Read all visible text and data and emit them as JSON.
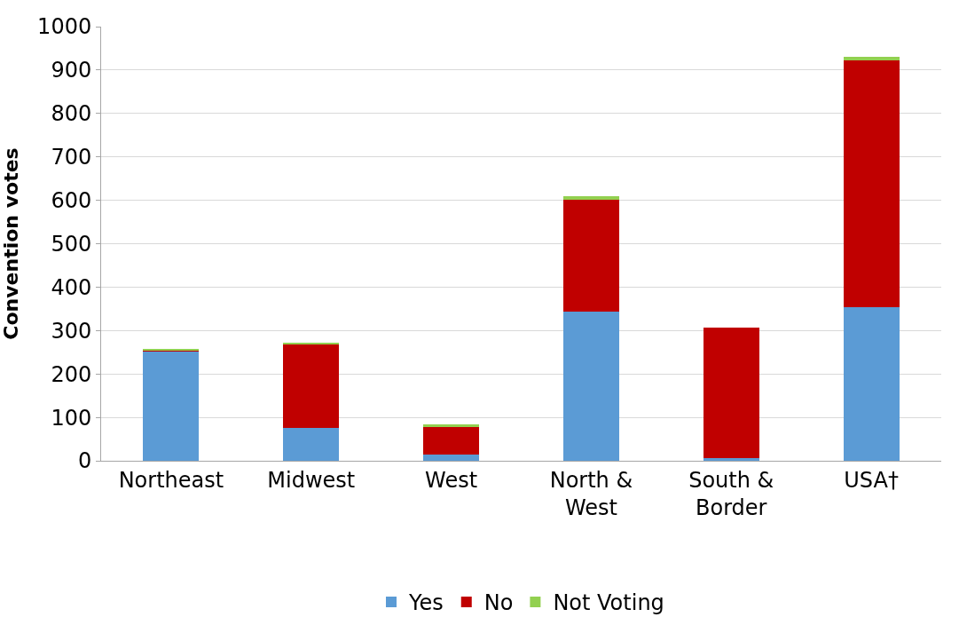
{
  "chart_data": {
    "type": "bar",
    "stacked": true,
    "ylabel": "Convention votes",
    "categories": [
      "Northeast",
      "Midwest",
      "West",
      "North & West",
      "South & Border",
      "USA†"
    ],
    "series": [
      {
        "name": "Yes",
        "color": "#5b9bd5",
        "values": [
          252,
          76,
          15,
          343,
          6,
          354
        ]
      },
      {
        "name": "No",
        "color": "#c00000",
        "values": [
          2,
          192,
          63,
          259,
          301,
          568
        ]
      },
      {
        "name": "Not Voting",
        "color": "#92d050",
        "values": [
          2,
          2,
          5,
          8,
          null,
          9
        ]
      }
    ],
    "ylim": [
      0,
      1000
    ],
    "yticks": [
      0,
      100,
      200,
      300,
      400,
      500,
      600,
      700,
      800,
      900,
      1000
    ],
    "grid": "y",
    "legend": "bottom"
  }
}
